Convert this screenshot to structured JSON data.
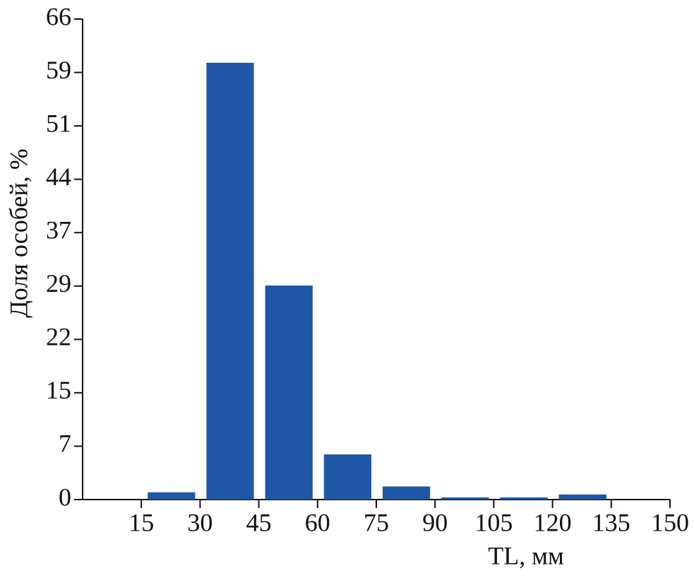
{
  "chart_data": {
    "type": "histogram",
    "xlabel": "TL, мм",
    "ylabel": "Доля особей, %",
    "bins": [
      15,
      30,
      45,
      60,
      75,
      90,
      105,
      120,
      135,
      150
    ],
    "values": [
      1.0,
      60,
      29.4,
      6.2,
      1.8,
      0.3,
      0.3,
      0.7,
      0
    ],
    "color": "#1f56a6",
    "xlim": [
      0,
      150
    ],
    "xticks": [
      15,
      30,
      45,
      60,
      75,
      90,
      105,
      120,
      135,
      150
    ],
    "ylim": [
      0,
      66
    ],
    "yticks": [
      0,
      {
        "value": 7.33,
        "label": "7"
      },
      {
        "value": 14.67,
        "label": "15"
      },
      22,
      {
        "value": 29.33,
        "label": "29"
      },
      {
        "value": 36.67,
        "label": "37"
      },
      44,
      {
        "value": 51.33,
        "label": "51"
      },
      {
        "value": 58.67,
        "label": "59"
      },
      66
    ],
    "grid": false
  }
}
